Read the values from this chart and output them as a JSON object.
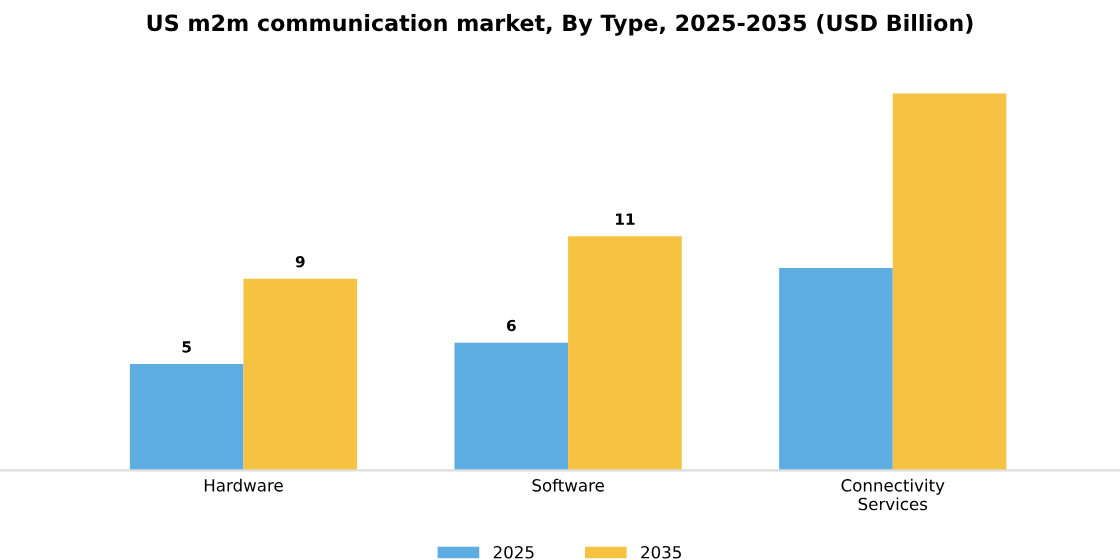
{
  "chart_data": {
    "type": "bar",
    "title": "US m2m communication market, By Type, 2025-2035 (USD Billion)",
    "categories": [
      "Hardware",
      "Software",
      "Connectivity\nServices"
    ],
    "series": [
      {
        "name": "2025",
        "color": "#5dade2",
        "values": [
          5,
          6,
          9.5
        ],
        "value_labels": [
          "5",
          "6",
          null
        ]
      },
      {
        "name": "2035",
        "color": "#f5c242",
        "values": [
          9,
          11,
          17.7
        ],
        "value_labels": [
          "9",
          "11",
          null
        ]
      }
    ],
    "legend": "bottom",
    "grid": false
  }
}
